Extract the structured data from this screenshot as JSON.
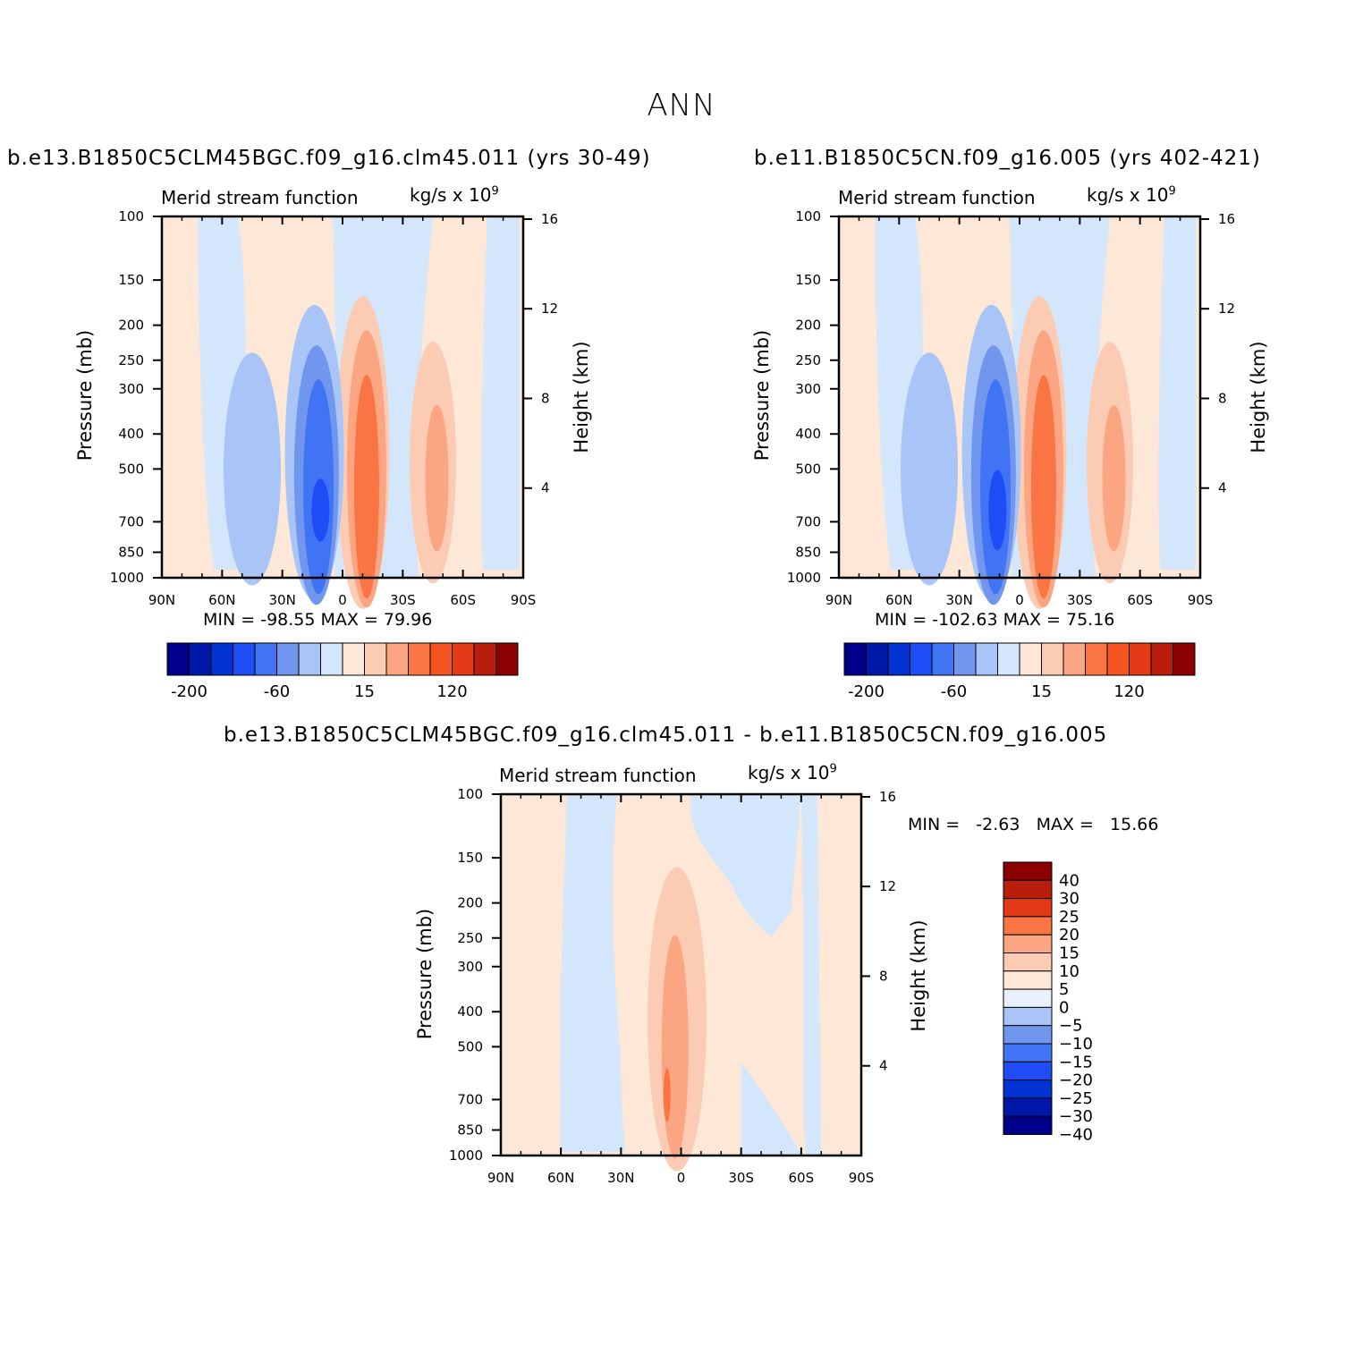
{
  "main_title": "ANN",
  "panels": [
    {
      "title": "b.e13.B1850C5CLM45BGC.f09_g16.clm45.011 (yrs 30-49)",
      "left_label": "Merid stream function",
      "right_label": "kg/s x 10",
      "right_label_exp": "9",
      "ylabel": "Pressure (mb)",
      "y2label": "Height (km)",
      "minmax": "MIN = -98.55   MAX = 79.96"
    },
    {
      "title": "b.e11.B1850C5CN.f09_g16.005 (yrs 402-421)",
      "left_label": "Merid stream function",
      "right_label": "kg/s x 10",
      "right_label_exp": "9",
      "ylabel": "Pressure (mb)",
      "y2label": "Height (km)",
      "minmax": "MIN = -102.63   MAX = 75.16"
    },
    {
      "title": "b.e13.B1850C5CLM45BGC.f09_g16.clm45.011 - b.e11.B1850C5CN.f09_g16.005",
      "left_label": "Merid stream function",
      "right_label": "kg/s x 10",
      "right_label_exp": "9",
      "ylabel": "Pressure (mb)",
      "y2label": "Height (km)",
      "minmax": "MIN =   -2.63   MAX =   15.66"
    }
  ],
  "axes": {
    "x_ticks": [
      "90N",
      "60N",
      "30N",
      "0",
      "30S",
      "60S",
      "90S"
    ],
    "y_ticks": [
      "100",
      "150",
      "200",
      "250",
      "300",
      "400",
      "500",
      "700",
      "850",
      "1000"
    ],
    "y_tick_values": [
      100,
      150,
      200,
      250,
      300,
      400,
      500,
      700,
      850,
      1000
    ],
    "y2_ticks": [
      "16",
      "12",
      "8",
      "4"
    ],
    "y2_tick_values": [
      16,
      12,
      8,
      4
    ],
    "x_range": [
      90,
      -90
    ],
    "y_range": [
      100,
      1000
    ],
    "y_scale": "log"
  },
  "colorbar_labels": [
    "-200",
    "-60",
    "15",
    "120"
  ],
  "diff_colorbar_labels": [
    "40",
    "30",
    "25",
    "20",
    "15",
    "10",
    "5",
    "0",
    "-5",
    "-10",
    "-15",
    "-20",
    "-25",
    "-30",
    "-40"
  ],
  "colors": {
    "scale": [
      "#00008b",
      "#0018a8",
      "#0033d1",
      "#1e4cf5",
      "#4173f5",
      "#7096ee",
      "#a9c4f7",
      "#d3e6fb",
      "#fde8d8",
      "#fccbb3",
      "#fca582",
      "#fb7443",
      "#f45422",
      "#e23a16",
      "#b81e0b",
      "#8b0000"
    ],
    "diff_scale": [
      "#8b0000",
      "#b81e0b",
      "#e23a16",
      "#fb7443",
      "#fca582",
      "#fccbb3",
      "#fde8d8",
      "#e7f0fb",
      "#a9c4f7",
      "#7096ee",
      "#4173f5",
      "#1e4cf5",
      "#0033d1",
      "#0018a8",
      "#00008b"
    ]
  },
  "chart_data": [
    {
      "type": "contour",
      "title": "b.e13.B1850C5CLM45BGC.f09_g16.clm45.011 (yrs 30-49)",
      "xlabel": "",
      "ylabel": "Pressure (mb)",
      "y2label": "Height (km)",
      "xlim": [
        90,
        -90
      ],
      "ylim": [
        100,
        1000
      ],
      "min": -98.55,
      "max": 79.96,
      "cells": [
        {
          "lat": -12,
          "p": 600,
          "value": 80
        },
        {
          "lat": 12,
          "p": 650,
          "value": -98
        },
        {
          "lat": 45,
          "p": 500,
          "value": -30
        },
        {
          "lat": -45,
          "p": 520,
          "value": 35
        }
      ]
    },
    {
      "type": "contour",
      "title": "b.e11.B1850C5CN.f09_g16.005 (yrs 402-421)",
      "xlabel": "",
      "ylabel": "Pressure (mb)",
      "y2label": "Height (km)",
      "xlim": [
        90,
        -90
      ],
      "ylim": [
        100,
        1000
      ],
      "min": -102.63,
      "max": 75.16,
      "cells": [
        {
          "lat": -12,
          "p": 600,
          "value": 75
        },
        {
          "lat": 12,
          "p": 650,
          "value": -102
        },
        {
          "lat": 45,
          "p": 500,
          "value": -30
        },
        {
          "lat": -45,
          "p": 520,
          "value": 35
        }
      ]
    },
    {
      "type": "contour",
      "title": "b.e13.B1850C5CLM45BGC.f09_g16.clm45.011 - b.e11.B1850C5CN.f09_g16.005",
      "xlabel": "",
      "ylabel": "Pressure (mb)",
      "y2label": "Height (km)",
      "xlim": [
        90,
        -90
      ],
      "ylim": [
        100,
        1000
      ],
      "min": -2.63,
      "max": 15.66,
      "cells": [
        {
          "lat": 5,
          "p": 500,
          "value": 15
        },
        {
          "lat": 0,
          "p": 350,
          "value": 8
        }
      ]
    }
  ]
}
